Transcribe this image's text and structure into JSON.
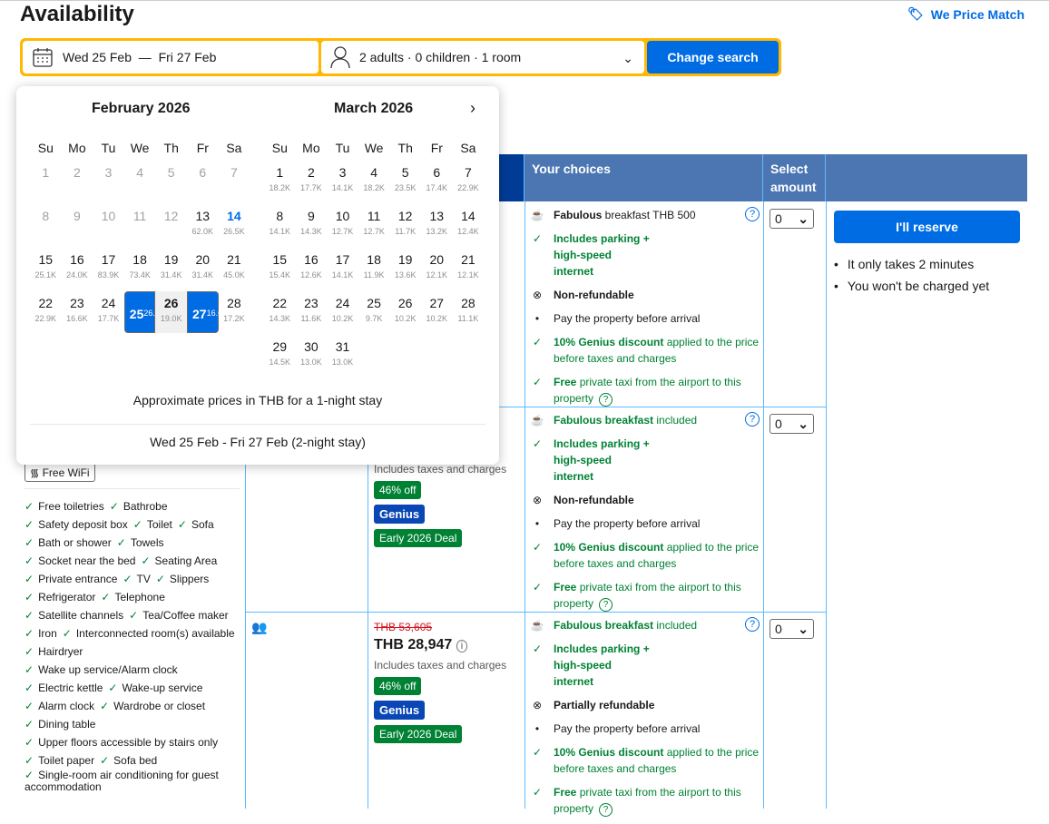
{
  "header": {
    "title": "Availability",
    "price_match": "We Price Match"
  },
  "search": {
    "dates": "Wed 25 Feb  —  Fri 27 Feb",
    "guests": "2 adults · 0 children · 1 room",
    "button": "Change search"
  },
  "calendar": {
    "weekdays": [
      "Su",
      "Mo",
      "Tu",
      "We",
      "Th",
      "Fr",
      "Sa"
    ],
    "months": [
      {
        "title": "February 2026",
        "days": [
          {
            "d": "1",
            "s": "dis"
          },
          {
            "d": "2",
            "s": "dis"
          },
          {
            "d": "3",
            "s": "dis"
          },
          {
            "d": "4",
            "s": "dis"
          },
          {
            "d": "5",
            "s": "dis"
          },
          {
            "d": "6",
            "s": "dis"
          },
          {
            "d": "7",
            "s": "dis"
          },
          {
            "d": "8",
            "s": "dis"
          },
          {
            "d": "9",
            "s": "dis"
          },
          {
            "d": "10",
            "s": "dis"
          },
          {
            "d": "11",
            "s": "dis"
          },
          {
            "d": "12",
            "s": "dis"
          },
          {
            "d": "13",
            "p": "62.0K"
          },
          {
            "d": "14",
            "p": "26.5K",
            "s": "today"
          },
          {
            "d": "15",
            "p": "25.1K"
          },
          {
            "d": "16",
            "p": "24.0K"
          },
          {
            "d": "17",
            "p": "83.9K"
          },
          {
            "d": "18",
            "p": "73.4K"
          },
          {
            "d": "19",
            "p": "31.4K"
          },
          {
            "d": "20",
            "p": "31.4K"
          },
          {
            "d": "21",
            "p": "45.0K"
          },
          {
            "d": "22",
            "p": "22.9K"
          },
          {
            "d": "23",
            "p": "16.6K"
          },
          {
            "d": "24",
            "p": "17.7K"
          },
          {
            "d": "25",
            "p": "26.1K",
            "s": "sel start"
          },
          {
            "d": "26",
            "p": "19.0K",
            "s": "range"
          },
          {
            "d": "27",
            "p": "16.6K",
            "s": "sel end"
          },
          {
            "d": "28",
            "p": "17.2K"
          }
        ]
      },
      {
        "title": "March 2026",
        "days": [
          {
            "d": "1",
            "p": "18.2K"
          },
          {
            "d": "2",
            "p": "17.7K"
          },
          {
            "d": "3",
            "p": "14.1K"
          },
          {
            "d": "4",
            "p": "18.2K"
          },
          {
            "d": "5",
            "p": "23.5K"
          },
          {
            "d": "6",
            "p": "17.4K"
          },
          {
            "d": "7",
            "p": "22.9K"
          },
          {
            "d": "8",
            "p": "14.1K"
          },
          {
            "d": "9",
            "p": "14.3K"
          },
          {
            "d": "10",
            "p": "12.7K"
          },
          {
            "d": "11",
            "p": "12.7K"
          },
          {
            "d": "12",
            "p": "11.7K"
          },
          {
            "d": "13",
            "p": "13.2K"
          },
          {
            "d": "14",
            "p": "12.4K"
          },
          {
            "d": "15",
            "p": "15.4K"
          },
          {
            "d": "16",
            "p": "12.6K"
          },
          {
            "d": "17",
            "p": "14.1K"
          },
          {
            "d": "18",
            "p": "11.9K"
          },
          {
            "d": "19",
            "p": "13.6K"
          },
          {
            "d": "20",
            "p": "12.1K"
          },
          {
            "d": "21",
            "p": "12.1K"
          },
          {
            "d": "22",
            "p": "14.3K"
          },
          {
            "d": "23",
            "p": "11.6K"
          },
          {
            "d": "24",
            "p": "10.2K"
          },
          {
            "d": "25",
            "p": "9.7K"
          },
          {
            "d": "26",
            "p": "10.2K"
          },
          {
            "d": "27",
            "p": "10.2K"
          },
          {
            "d": "28",
            "p": "11.1K"
          },
          {
            "d": "29",
            "p": "14.5K"
          },
          {
            "d": "30",
            "p": "13.0K"
          },
          {
            "d": "31",
            "p": "13.0K"
          }
        ]
      }
    ],
    "note": "Approximate prices in THB for a 1-night stay",
    "selected_range": "Wed 25 Feb - Fri 27 Feb (2-night stay)"
  },
  "table": {
    "headers": {
      "choices": "Your choices",
      "select": "Select amount"
    },
    "wifi": "Free WiFi",
    "amenities": [
      [
        "Free toiletries",
        "Bathrobe"
      ],
      [
        "Safety deposit box",
        "Toilet",
        "Sofa"
      ],
      [
        "Bath or shower",
        "Towels"
      ],
      [
        "Socket near the bed",
        "Seating Area"
      ],
      [
        "Private entrance",
        "TV",
        "Slippers"
      ],
      [
        "Refrigerator",
        "Telephone"
      ],
      [
        "Satellite channels",
        "Tea/Coffee maker"
      ],
      [
        "Iron",
        "Interconnected room(s) available"
      ],
      [
        "Hairdryer"
      ],
      [
        "Wake up service/Alarm clock"
      ],
      [
        "Electric kettle",
        "Wake-up service"
      ],
      [
        "Alarm clock",
        "Wardrobe or closet"
      ],
      [
        "Dining table"
      ],
      [
        "Upper floors accessible by stairs only"
      ],
      [
        "Toilet paper",
        "Sofa bed"
      ],
      [
        "Single-room air conditioning for guest accommodation"
      ]
    ],
    "rows": [
      {
        "breakfast_b": "Fabulous",
        "breakfast": " breakfast THB 500",
        "parking": "Includes parking + high-speed internet",
        "refund": "Non-refundable",
        "pay": "Pay the property before arrival",
        "genius_b": "10% Genius discount",
        "genius": " applied to the price before taxes and charges",
        "taxi_b": "Free",
        "taxi": " private taxi from the airport to this property",
        "amount": "0"
      },
      {
        "taxes": "Includes taxes and charges",
        "badges": [
          "46% off",
          "Genius",
          "Early 2026 Deal"
        ],
        "breakfast_b": "Fabulous breakfast",
        "breakfast": " included",
        "parking": "Includes parking + high-speed internet",
        "refund": "Non-refundable",
        "pay": "Pay the property before arrival",
        "genius_b": "10% Genius discount",
        "genius": " applied to the price before taxes and charges",
        "taxi_b": "Free",
        "taxi": " private taxi from the airport to this property",
        "amount": "0"
      },
      {
        "old_price": "THB 53,605",
        "price": "THB 28,947",
        "taxes": "Includes taxes and charges",
        "badges": [
          "46% off",
          "Genius",
          "Early 2026 Deal"
        ],
        "breakfast_b": "Fabulous breakfast",
        "breakfast": " included",
        "parking": "Includes parking + high-speed internet",
        "refund": "Partially refundable",
        "pay": "Pay the property before arrival",
        "genius_b": "10% Genius discount",
        "genius": " applied to the price before taxes and charges",
        "taxi_b": "Free",
        "taxi": " private taxi from the airport to this property",
        "amount": "0"
      }
    ],
    "reserve": {
      "button": "I'll reserve",
      "notes": [
        "It only takes 2 minutes",
        "You won't be charged yet"
      ]
    }
  },
  "colors": {
    "brand_blue": "#006ce4",
    "header_blue": "#4c76b2",
    "search_border": "#ffb700",
    "green": "#008234"
  }
}
